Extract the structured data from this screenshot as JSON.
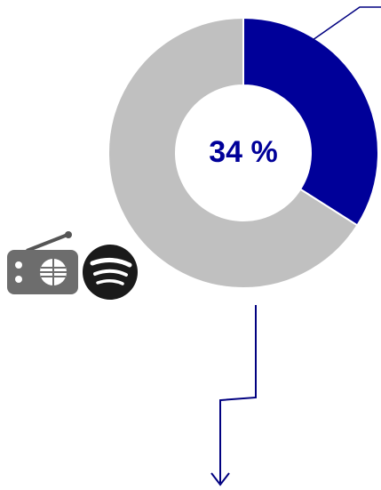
{
  "chart_data": {
    "type": "donut",
    "values": [
      34,
      66
    ],
    "value_labels": [
      "34 %",
      null
    ],
    "colors": [
      "#000099",
      "#c0c0c0"
    ]
  }
}
